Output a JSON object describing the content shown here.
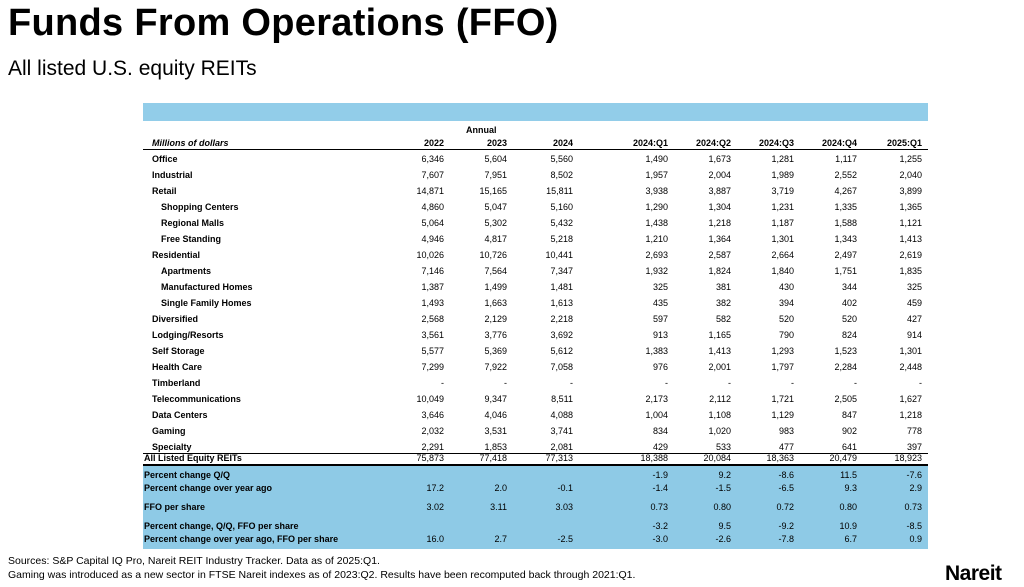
{
  "title": "Funds From Operations (FFO)",
  "subtitle": "All listed U.S. equity REITs",
  "table": {
    "group_header": "Annual",
    "units_label": "Millions of dollars",
    "columns": [
      "2022",
      "2023",
      "2024",
      "2024:Q1",
      "2024:Q2",
      "2024:Q3",
      "2024:Q4",
      "2025:Q1"
    ],
    "rows": [
      {
        "label": "Office",
        "indent": 0,
        "values": [
          "6,346",
          "5,604",
          "5,560",
          "1,490",
          "1,673",
          "1,281",
          "1,117",
          "1,255"
        ]
      },
      {
        "label": "Industrial",
        "indent": 0,
        "values": [
          "7,607",
          "7,951",
          "8,502",
          "1,957",
          "2,004",
          "1,989",
          "2,552",
          "2,040"
        ]
      },
      {
        "label": "Retail",
        "indent": 0,
        "values": [
          "14,871",
          "15,165",
          "15,811",
          "3,938",
          "3,887",
          "3,719",
          "4,267",
          "3,899"
        ]
      },
      {
        "label": "Shopping Centers",
        "indent": 1,
        "values": [
          "4,860",
          "5,047",
          "5,160",
          "1,290",
          "1,304",
          "1,231",
          "1,335",
          "1,365"
        ]
      },
      {
        "label": "Regional Malls",
        "indent": 1,
        "values": [
          "5,064",
          "5,302",
          "5,432",
          "1,438",
          "1,218",
          "1,187",
          "1,588",
          "1,121"
        ]
      },
      {
        "label": "Free Standing",
        "indent": 1,
        "values": [
          "4,946",
          "4,817",
          "5,218",
          "1,210",
          "1,364",
          "1,301",
          "1,343",
          "1,413"
        ]
      },
      {
        "label": "Residential",
        "indent": 0,
        "values": [
          "10,026",
          "10,726",
          "10,441",
          "2,693",
          "2,587",
          "2,664",
          "2,497",
          "2,619"
        ]
      },
      {
        "label": "Apartments",
        "indent": 1,
        "values": [
          "7,146",
          "7,564",
          "7,347",
          "1,932",
          "1,824",
          "1,840",
          "1,751",
          "1,835"
        ]
      },
      {
        "label": "Manufactured Homes",
        "indent": 1,
        "values": [
          "1,387",
          "1,499",
          "1,481",
          "325",
          "381",
          "430",
          "344",
          "325"
        ]
      },
      {
        "label": "Single Family Homes",
        "indent": 1,
        "values": [
          "1,493",
          "1,663",
          "1,613",
          "435",
          "382",
          "394",
          "402",
          "459"
        ]
      },
      {
        "label": "Diversified",
        "indent": 0,
        "values": [
          "2,568",
          "2,129",
          "2,218",
          "597",
          "582",
          "520",
          "520",
          "427"
        ]
      },
      {
        "label": "Lodging/Resorts",
        "indent": 0,
        "values": [
          "3,561",
          "3,776",
          "3,692",
          "913",
          "1,165",
          "790",
          "824",
          "914"
        ]
      },
      {
        "label": "Self Storage",
        "indent": 0,
        "values": [
          "5,577",
          "5,369",
          "5,612",
          "1,383",
          "1,413",
          "1,293",
          "1,523",
          "1,301"
        ]
      },
      {
        "label": "Health Care",
        "indent": 0,
        "values": [
          "7,299",
          "7,922",
          "7,058",
          "976",
          "2,001",
          "1,797",
          "2,284",
          "2,448"
        ]
      },
      {
        "label": "Timberland",
        "indent": 0,
        "values": [
          "-",
          "-",
          "-",
          "-",
          "-",
          "-",
          "-",
          "-"
        ]
      },
      {
        "label": "Telecommunications",
        "indent": 0,
        "values": [
          "10,049",
          "9,347",
          "8,511",
          "2,173",
          "2,112",
          "1,721",
          "2,505",
          "1,627"
        ]
      },
      {
        "label": "Data Centers",
        "indent": 0,
        "values": [
          "3,646",
          "4,046",
          "4,088",
          "1,004",
          "1,108",
          "1,129",
          "847",
          "1,218"
        ]
      },
      {
        "label": "Gaming",
        "indent": 0,
        "values": [
          "2,032",
          "3,531",
          "3,741",
          "834",
          "1,020",
          "983",
          "902",
          "778"
        ]
      },
      {
        "label": "Specialty",
        "indent": 0,
        "values": [
          "2,291",
          "1,853",
          "2,081",
          "429",
          "533",
          "477",
          "641",
          "397"
        ]
      }
    ],
    "total": {
      "label": "All Listed Equity REITs",
      "values": [
        "75,873",
        "77,418",
        "77,313",
        "18,388",
        "20,084",
        "18,363",
        "20,479",
        "18,923"
      ]
    },
    "stats": [
      {
        "label": "Percent change Q/Q",
        "values": [
          "",
          "",
          "",
          "-1.9",
          "9.2",
          "-8.6",
          "11.5",
          "-7.6"
        ]
      },
      {
        "label": "Percent change over year ago",
        "values": [
          "17.2",
          "2.0",
          "-0.1",
          "-1.4",
          "-1.5",
          "-6.5",
          "9.3",
          "2.9"
        ]
      },
      {
        "label": "FFO per share",
        "values": [
          "3.02",
          "3.11",
          "3.03",
          "0.73",
          "0.80",
          "0.72",
          "0.80",
          "0.73"
        ]
      },
      {
        "label": "Percent change, Q/Q, FFO per share",
        "values": [
          "",
          "",
          "",
          "-3.2",
          "9.5",
          "-9.2",
          "10.9",
          "-8.5"
        ]
      },
      {
        "label": "Percent change over year ago, FFO per share",
        "values": [
          "16.0",
          "2.7",
          "-2.5",
          "-3.0",
          "-2.6",
          "-7.8",
          "6.7",
          "0.9"
        ]
      }
    ]
  },
  "footnotes": [
    "Sources: S&P Capital IQ Pro, Nareit REIT Industry Tracker. Data as of 2025:Q1.",
    "Gaming was introduced as a new sector in FTSE Nareit indexes as of 2023:Q2. Results have been recomputed back through 2021:Q1."
  ],
  "logo": "Nareit",
  "colors": {
    "header_bar": "#92cde9",
    "stats_shade": "#8ecae6"
  }
}
